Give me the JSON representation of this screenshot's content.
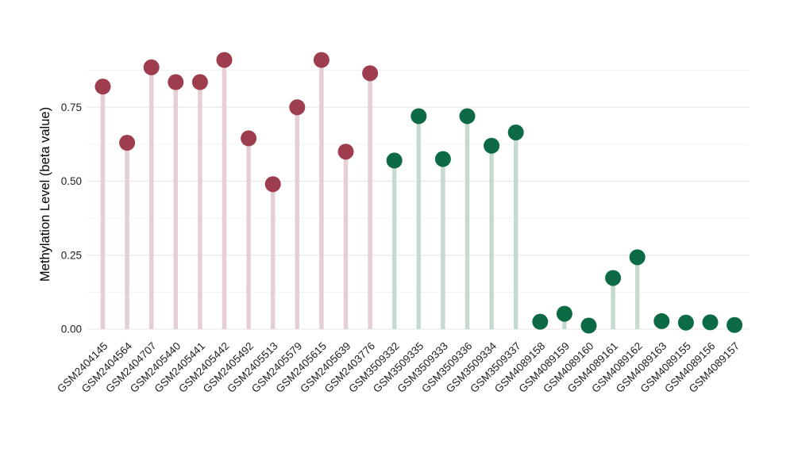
{
  "chart_data": {
    "type": "lollipop",
    "title": "",
    "xlabel": "",
    "ylabel": "Methylation Level (beta value)",
    "ylim": [
      0,
      0.98
    ],
    "grid": true,
    "legend": "none",
    "yticks": [
      0.0,
      0.25,
      0.5,
      0.75
    ],
    "ytick_labels": [
      "0.00",
      "0.25",
      "0.50",
      "0.75"
    ],
    "minor_gridlines": [
      0.125,
      0.375,
      0.625,
      0.875
    ],
    "categories": [
      "GSM2404145",
      "GSM2404564",
      "GSM2404707",
      "GSM2405440",
      "GSM2405441",
      "GSM2405442",
      "GSM2405492",
      "GSM2405513",
      "GSM2405579",
      "GSM2405615",
      "GSM2405639",
      "GSM2403776",
      "GSM3509332",
      "GSM3509335",
      "GSM3509333",
      "GSM3509336",
      "GSM3509334",
      "GSM3509337",
      "GSM4089158",
      "GSM4089159",
      "GSM4089160",
      "GSM4089161",
      "GSM4089162",
      "GSM4089163",
      "GSM4089155",
      "GSM4089156",
      "GSM4089157"
    ],
    "values": [
      0.82,
      0.63,
      0.885,
      0.835,
      0.835,
      0.91,
      0.645,
      0.49,
      0.75,
      0.91,
      0.6,
      0.865,
      0.57,
      0.72,
      0.575,
      0.72,
      0.62,
      0.665,
      0.025,
      0.052,
      0.012,
      0.173,
      0.243,
      0.027,
      0.022,
      0.023,
      0.014
    ],
    "point_group": [
      0,
      0,
      0,
      0,
      0,
      0,
      0,
      0,
      0,
      0,
      0,
      0,
      1,
      1,
      1,
      1,
      1,
      1,
      1,
      1,
      1,
      1,
      1,
      1,
      1,
      1,
      1
    ],
    "groups": [
      {
        "name": "group-red",
        "point_color": "#9e3d4e",
        "stem_color": "#e6ced5"
      },
      {
        "name": "group-green",
        "point_color": "#0c6b45",
        "stem_color": "#c6dbd0"
      }
    ],
    "axis_text_color": "#1f1f1f",
    "background_color": "#ffffff"
  }
}
